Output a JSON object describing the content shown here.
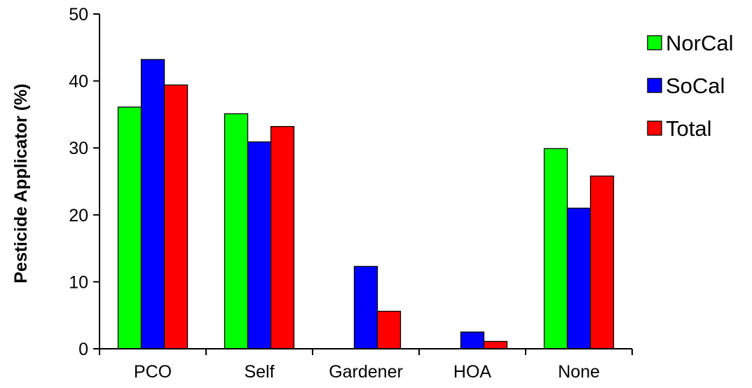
{
  "chart_data": {
    "type": "bar",
    "title": "",
    "xlabel": "",
    "ylabel": "Pesticide Applicator  (%)",
    "ylim": [
      0,
      50
    ],
    "yticks": [
      0,
      10,
      20,
      30,
      40,
      50
    ],
    "grid": false,
    "legend_position": "top-right",
    "categories": [
      "PCO",
      "Self",
      "Gardener",
      "HOA",
      "None"
    ],
    "series": [
      {
        "name": "NorCal",
        "color": "#00ff00",
        "values": [
          36.1,
          35.1,
          0,
          0,
          29.9
        ]
      },
      {
        "name": "SoCal",
        "color": "#0000ff",
        "values": [
          43.2,
          30.9,
          12.3,
          2.5,
          21.0
        ]
      },
      {
        "name": "Total",
        "color": "#ff0000",
        "values": [
          39.4,
          33.2,
          5.6,
          1.1,
          25.8
        ]
      }
    ]
  }
}
